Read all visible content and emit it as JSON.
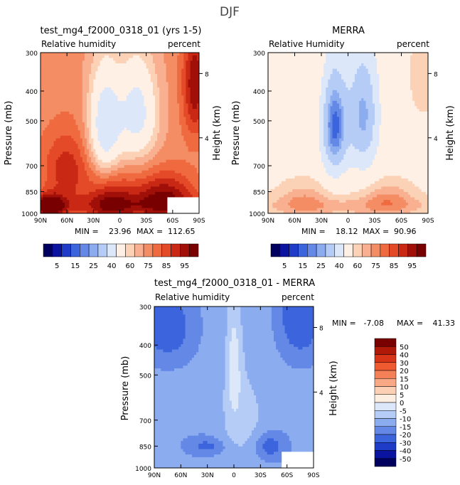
{
  "page_title": "DJF",
  "chart_data": [
    {
      "type": "heatmap",
      "id": "model",
      "title": "test_mg4_f2000_0318_01 (yrs 1-5)",
      "left_subtitle": "Relative humidity",
      "right_subtitle": "percent",
      "ylabel": "Pressure (mb)",
      "ylabel_right": "Height (km)",
      "x_ticks": [
        "90N",
        "60N",
        "30N",
        "0",
        "30S",
        "60S",
        "90S"
      ],
      "y_ticks": [
        "300",
        "400",
        "500",
        "700",
        "850",
        "1000"
      ],
      "y_right_ticks": [
        "8",
        "4"
      ],
      "min_label": "MIN =",
      "min_value": "23.96",
      "max_label": "MAX =",
      "max_value": "112.65",
      "xlim": [
        90,
        -90
      ],
      "ylim": [
        1000,
        300
      ]
    },
    {
      "type": "heatmap",
      "id": "obs",
      "title": "MERRA",
      "left_subtitle": "Relative Humidity",
      "right_subtitle": "percent",
      "ylabel": "Pressure (mb)",
      "ylabel_right": "Height (km)",
      "x_ticks": [
        "90N",
        "60N",
        "30N",
        "0",
        "30S",
        "60S",
        "90S"
      ],
      "y_ticks": [
        "300",
        "400",
        "500",
        "700",
        "850",
        "1000"
      ],
      "y_right_ticks": [
        "8",
        "4"
      ],
      "min_label": "MIN =",
      "min_value": "18.12",
      "max_label": "MAX =",
      "max_value": "90.96",
      "xlim": [
        90,
        -90
      ],
      "ylim": [
        1000,
        300
      ]
    },
    {
      "type": "heatmap",
      "id": "diff",
      "title": "test_mg4_f2000_0318_01 - MERRA",
      "left_subtitle": "Relative humidity",
      "right_subtitle": "percent",
      "ylabel": "Pressure (mb)",
      "ylabel_right": "Height (km)",
      "x_ticks": [
        "90N",
        "60N",
        "30N",
        "0",
        "30S",
        "60S",
        "90S"
      ],
      "y_ticks": [
        "300",
        "400",
        "500",
        "700",
        "850",
        "1000"
      ],
      "y_right_ticks": [
        "8",
        "4"
      ],
      "min_label": "MIN =",
      "min_value": "-7.08",
      "max_label": "MAX =",
      "max_value": "41.33",
      "xlim": [
        90,
        -90
      ],
      "ylim": [
        1000,
        300
      ]
    }
  ],
  "colorbar_rh": {
    "labels": [
      "5",
      "15",
      "25",
      "40",
      "60",
      "75",
      "85",
      "95"
    ],
    "colors": [
      "#00005e",
      "#0a14a0",
      "#1e3cc8",
      "#3c64dc",
      "#6488e6",
      "#8cacf0",
      "#b4ccf6",
      "#dce8fa",
      "#fff0e6",
      "#fcd2b6",
      "#f8b090",
      "#f48c64",
      "#f06a40",
      "#e44a28",
      "#c82814",
      "#a01008",
      "#780000"
    ]
  },
  "colorbar_diff": {
    "labels": [
      "50",
      "40",
      "30",
      "20",
      "15",
      "10",
      "5",
      "0",
      "-5",
      "-10",
      "-15",
      "-20",
      "-30",
      "-40",
      "-50"
    ],
    "colors": [
      "#780000",
      "#b01808",
      "#d83418",
      "#f05a30",
      "#f48058",
      "#f8a884",
      "#fcd0b4",
      "#fdeee2",
      "#dce8fa",
      "#b4ccf6",
      "#8cacf0",
      "#6488e6",
      "#3c64dc",
      "#1e3cc8",
      "#0a14a0",
      "#00005e"
    ]
  }
}
